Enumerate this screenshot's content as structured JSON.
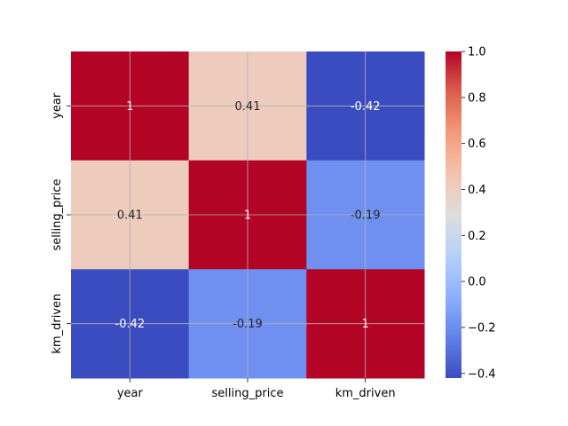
{
  "chart_data": {
    "type": "heatmap",
    "x_categories": [
      "year",
      "selling_price",
      "km_driven"
    ],
    "y_categories": [
      "year",
      "selling_price",
      "km_driven"
    ],
    "values": [
      [
        1,
        0.41,
        -0.42
      ],
      [
        0.41,
        1,
        -0.19
      ],
      [
        -0.42,
        -0.19,
        1
      ]
    ],
    "annotations": [
      [
        "1",
        "0.41",
        "-0.42"
      ],
      [
        "0.41",
        "1",
        "-0.19"
      ],
      [
        "-0.42",
        "-0.19",
        "1"
      ]
    ],
    "colormap": "coolwarm",
    "colorbar": {
      "vmin": -0.42,
      "vmax": 1.0,
      "ticks": [
        -0.4,
        -0.2,
        0.0,
        0.2,
        0.4,
        0.6,
        0.8,
        1.0
      ],
      "tick_labels": [
        "−0.4",
        "−0.2",
        "0.0",
        "0.2",
        "0.4",
        "0.6",
        "0.8",
        "1.0"
      ]
    },
    "grid": true,
    "title": "",
    "xlabel": "",
    "ylabel": ""
  }
}
